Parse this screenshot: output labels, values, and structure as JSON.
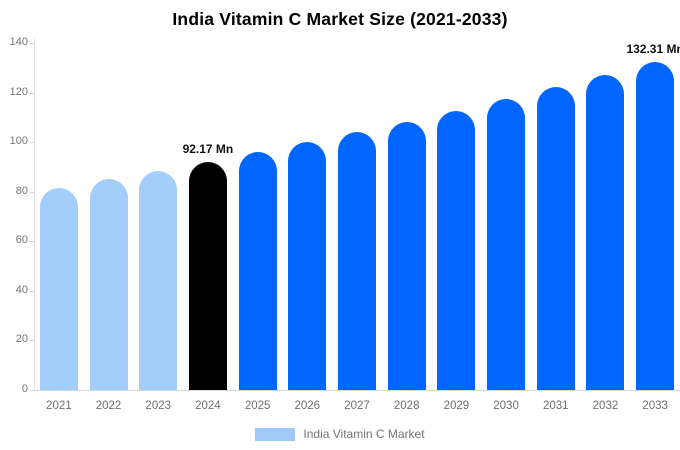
{
  "chart_data": {
    "type": "bar",
    "title": "India Vitamin C Market Size (2021-2033)",
    "categories": [
      "2021",
      "2022",
      "2023",
      "2024",
      "2025",
      "2026",
      "2027",
      "2028",
      "2029",
      "2030",
      "2031",
      "2032",
      "2033"
    ],
    "values": [
      81.7,
      85.0,
      88.5,
      92.17,
      95.96,
      99.91,
      104.0,
      108.3,
      112.76,
      117.4,
      122.2,
      127.26,
      132.31
    ],
    "unit": "Mn",
    "xlabel": "",
    "ylabel": "",
    "ylim": [
      0,
      140
    ],
    "ytick_step": 20,
    "grid": false,
    "legend": {
      "label": "India Vitamin C Market",
      "position": "bottom"
    },
    "annotations": [
      {
        "category": "2024",
        "text": "92.17 Mn"
      },
      {
        "category": "2033",
        "text": "132.31 Mn"
      }
    ],
    "palette": {
      "historical": "#a3cefb",
      "highlight": "#000000",
      "forecast": "#0066ff"
    },
    "color_keys": [
      "historical",
      "historical",
      "historical",
      "highlight",
      "forecast",
      "forecast",
      "forecast",
      "forecast",
      "forecast",
      "forecast",
      "forecast",
      "forecast",
      "forecast"
    ]
  }
}
